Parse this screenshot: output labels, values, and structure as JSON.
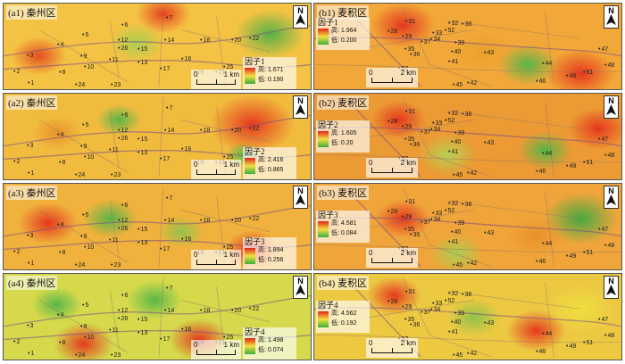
{
  "panels": [
    {
      "id": "a1",
      "title": "(a1) 秦州区",
      "factor": "因子1",
      "high": "高: 1.671",
      "low": "低: 0.190",
      "scale": "1 km"
    },
    {
      "id": "b1",
      "title": "(b1) 麦积区",
      "factor": "因子1",
      "high": "高: 1.964",
      "low": "低: 0.200",
      "scale": "2 km"
    },
    {
      "id": "a2",
      "title": "(a2) 秦州区",
      "factor": "因子2",
      "high": "高: 2.416",
      "low": "低: 0.865",
      "scale": "1 km"
    },
    {
      "id": "b2",
      "title": "(b2) 麦积区",
      "factor": "因子2",
      "high": "高: 1.605",
      "low": "低: 0.20",
      "scale": "2 km"
    },
    {
      "id": "a3",
      "title": "(a3) 秦州区",
      "factor": "因子3",
      "high": "高: 1.894",
      "low": "低: 0.256",
      "scale": "1 km"
    },
    {
      "id": "b3",
      "title": "(b3) 麦积区",
      "factor": "因子3",
      "high": "高: 4.581",
      "low": "低: 0.084",
      "scale": "2 km"
    },
    {
      "id": "a4",
      "title": "(a4) 秦州区",
      "factor": "因子4",
      "high": "高: 1.498",
      "low": "低: 0.074",
      "scale": "1 km"
    },
    {
      "id": "b4",
      "title": "(b4) 麦积区",
      "factor": "因子4",
      "high": "高: 4.562",
      "low": "低: 0.192",
      "scale": "2 km"
    }
  ],
  "scale_zero": "0",
  "north": "N",
  "points_a": [
    "1",
    "2",
    "3",
    "4",
    "5",
    "6",
    "7",
    "8",
    "9",
    "10",
    "11",
    "12",
    "13",
    "14",
    "15",
    "16",
    "17",
    "18",
    "19",
    "20",
    "21",
    "22",
    "23",
    "24",
    "25",
    "26"
  ],
  "points_b": [
    "27",
    "28",
    "29",
    "30",
    "31",
    "32",
    "33",
    "34",
    "35",
    "36",
    "37",
    "38",
    "39",
    "40",
    "41",
    "42",
    "43",
    "44",
    "45",
    "46",
    "47",
    "48",
    "49",
    "50",
    "51",
    "52"
  ]
}
